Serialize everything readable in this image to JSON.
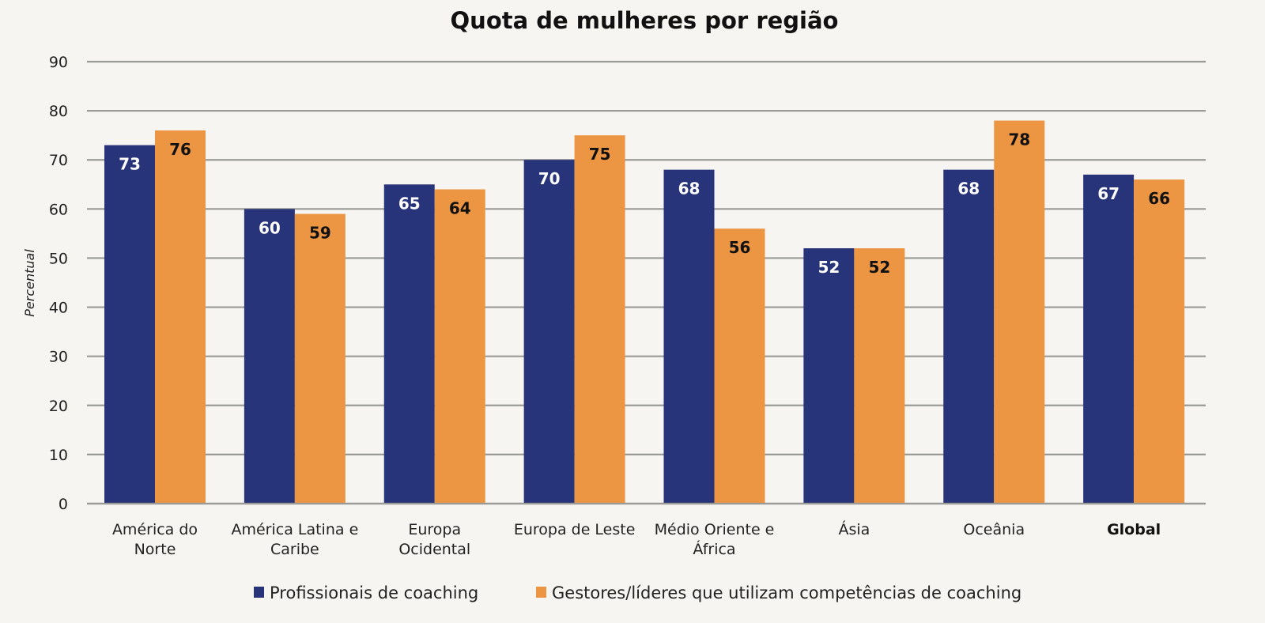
{
  "chart_data": {
    "type": "bar",
    "title": "Quota de mulheres por região",
    "xlabel": "",
    "ylabel": "Percentual",
    "ylim": [
      0,
      90
    ],
    "yticks": [
      0,
      10,
      20,
      30,
      40,
      50,
      60,
      70,
      80,
      90
    ],
    "grid": true,
    "legend_position": "bottom",
    "categories": [
      {
        "label": [
          "América do",
          "Norte"
        ],
        "bold": false
      },
      {
        "label": [
          "América Latina e",
          "Caribe"
        ],
        "bold": false
      },
      {
        "label": [
          "Europa",
          "Ocidental"
        ],
        "bold": false
      },
      {
        "label": [
          "Europa de Leste"
        ],
        "bold": false
      },
      {
        "label": [
          "Médio Oriente e",
          "África"
        ],
        "bold": false
      },
      {
        "label": [
          "Ásia"
        ],
        "bold": false
      },
      {
        "label": [
          "Oceânia"
        ],
        "bold": false
      },
      {
        "label": [
          "Global"
        ],
        "bold": true
      }
    ],
    "series": [
      {
        "name": "Profissionais de coaching",
        "color": "#283479",
        "label_color": "#ffffff",
        "values": [
          73,
          60,
          65,
          70,
          68,
          52,
          68,
          67
        ]
      },
      {
        "name": "Gestores/líderes que utilizam competências de coaching",
        "color": "#ec9643",
        "label_color": "#111111",
        "values": [
          76,
          59,
          64,
          75,
          56,
          52,
          78,
          66
        ]
      }
    ]
  },
  "colors": {
    "background": "#f7f5f1",
    "gridline": "#9a9a96"
  }
}
